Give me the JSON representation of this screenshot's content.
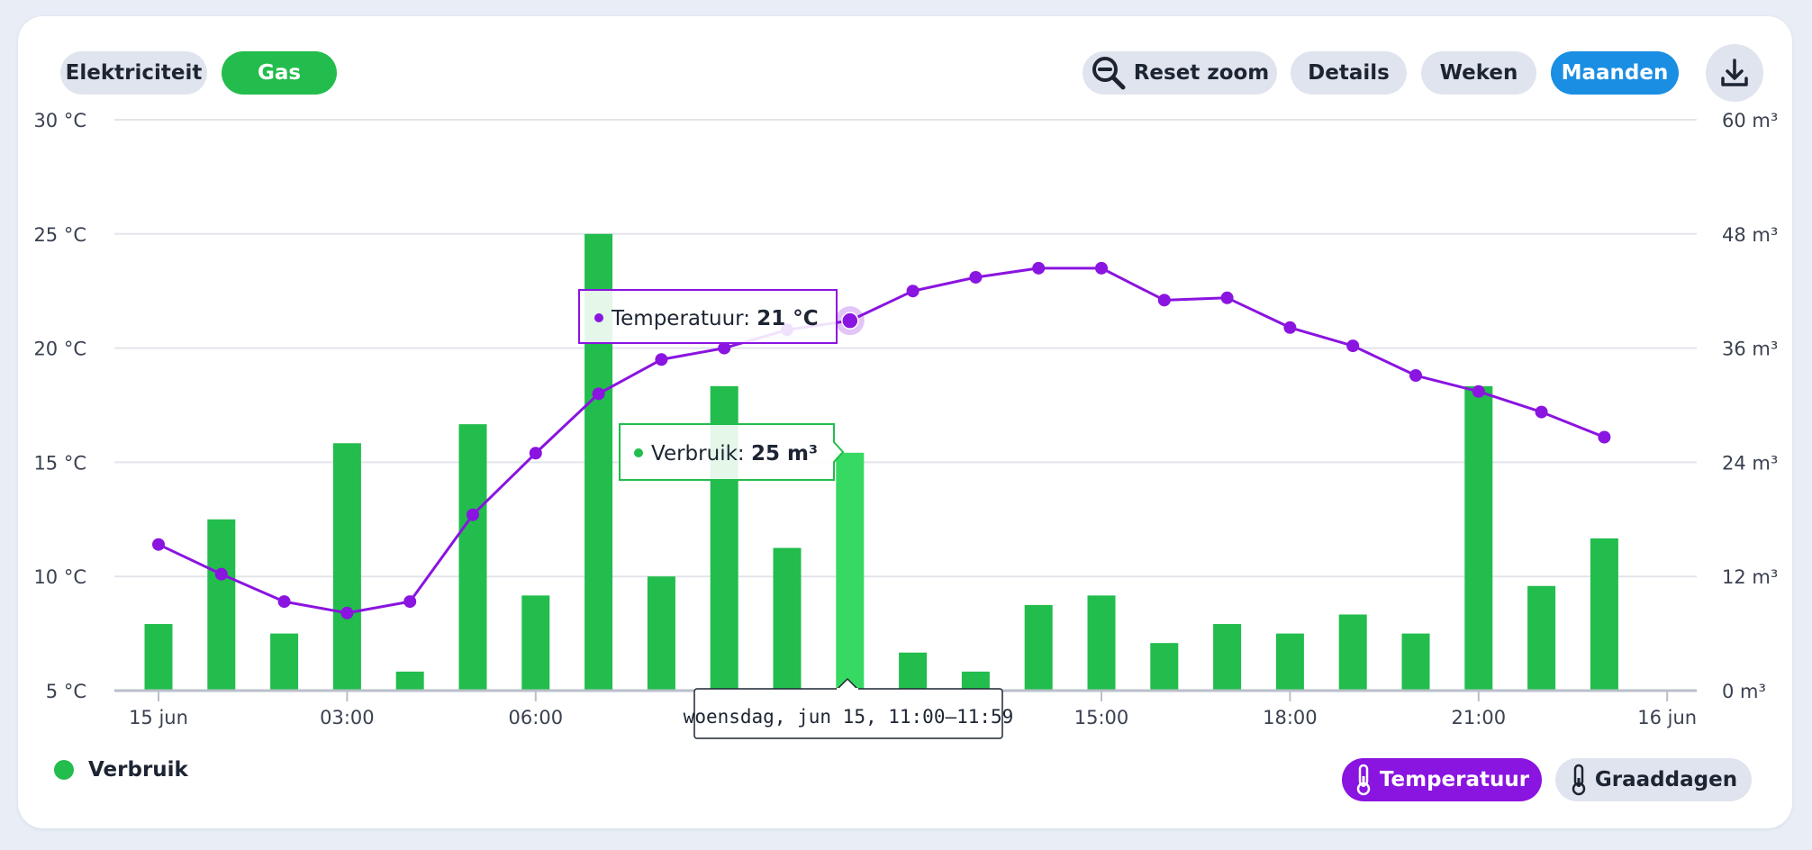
{
  "tabs": {
    "electricity": "Elektriciteit",
    "gas": "Gas"
  },
  "toolbar": {
    "reset_zoom": "Reset zoom",
    "details": "Details",
    "weeks": "Weken",
    "months": "Maanden"
  },
  "colors": {
    "bar": "#22bd4c",
    "bar_highlight": "#36d962",
    "line": "#8a14e0",
    "active_tab": "#22bd4c",
    "active_period": "#1a8ee3"
  },
  "chart_data": {
    "type": "bar",
    "x": [
      "00:00",
      "01:00",
      "02:00",
      "03:00",
      "04:00",
      "05:00",
      "06:00",
      "07:00",
      "08:00",
      "09:00",
      "10:00",
      "11:00",
      "12:00",
      "13:00",
      "14:00",
      "15:00",
      "16:00",
      "17:00",
      "18:00",
      "19:00",
      "20:00",
      "21:00",
      "22:00",
      "23:00"
    ],
    "x_tick_labels": [
      "15 jun",
      "03:00",
      "06:00",
      "09:00",
      "12:00",
      "15:00",
      "18:00",
      "21:00",
      "16 jun"
    ],
    "series": [
      {
        "name": "Verbruik",
        "type": "bar",
        "unit": "m³",
        "axis": "right",
        "values": [
          7,
          18,
          6,
          26,
          2,
          28,
          10,
          48,
          12,
          32,
          15,
          25,
          4,
          2,
          9,
          10,
          5,
          7,
          6,
          8,
          6,
          32,
          11,
          16
        ]
      },
      {
        "name": "Temperatuur",
        "type": "line",
        "unit": "°C",
        "axis": "left",
        "values": [
          11.4,
          10.1,
          8.9,
          8.4,
          8.9,
          12.7,
          15.4,
          18.0,
          19.5,
          20.0,
          20.8,
          21.2,
          22.5,
          23.1,
          23.5,
          23.5,
          22.1,
          22.2,
          20.9,
          20.1,
          18.8,
          18.1,
          17.2,
          16.1
        ]
      }
    ],
    "y_left": {
      "ticks": [
        "5 °C",
        "10 °C",
        "15 °C",
        "20 °C",
        "25 °C",
        "30 °C"
      ],
      "range": [
        5,
        30
      ]
    },
    "y_right": {
      "ticks": [
        "0 m³",
        "12 m³",
        "24 m³",
        "36 m³",
        "48 m³",
        "60 m³"
      ],
      "range": [
        0,
        60
      ]
    },
    "highlight_index": 11,
    "tooltip": {
      "temperature_label": "Temperatuur: ",
      "temperature_value": "21 °C",
      "usage_label": "Verbruik: ",
      "usage_value": "25 m³",
      "date_label": "woensdag, jun 15, 11:00–11:59"
    },
    "grid": true
  },
  "legend": {
    "usage": "Verbruik"
  },
  "bottom_buttons": {
    "temperature": "Temperatuur",
    "degree_days": "Graaddagen"
  }
}
